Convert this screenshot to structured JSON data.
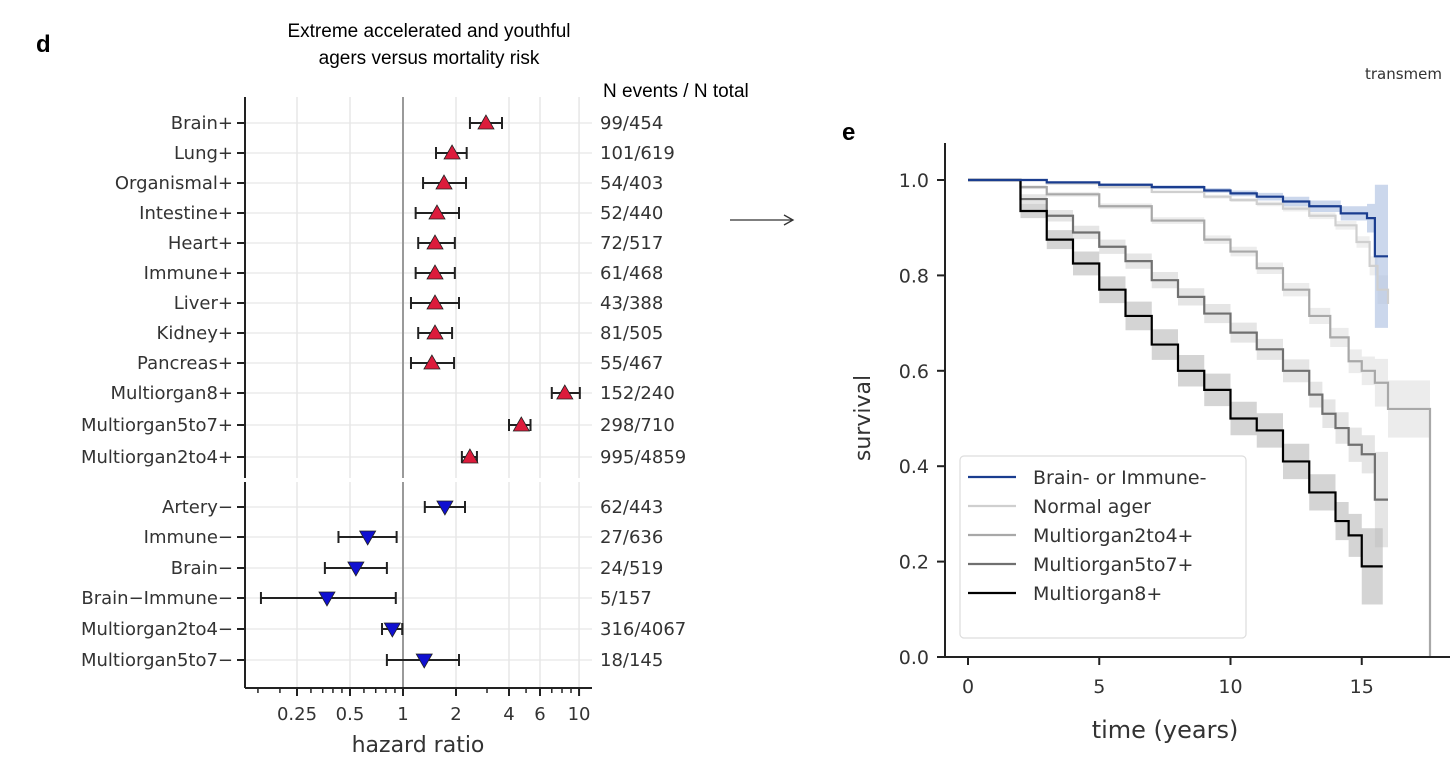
{
  "chart_data": [
    {
      "type": "forest",
      "panel_label": "d",
      "title": [
        "Extreme accelerated and youthful",
        "agers versus mortality risk"
      ],
      "right_header": "N events / N total",
      "xlabel": "hazard ratio",
      "xscale": "log2",
      "xlim": [
        0.127,
        11.9
      ],
      "xticks": [
        0.25,
        0.5,
        1,
        2,
        4,
        6,
        10
      ],
      "xtick_labels": [
        "0.25",
        "0.5",
        "1",
        "2",
        "4",
        "6",
        "10"
      ],
      "reference_line": 1,
      "grid": true,
      "groups": [
        {
          "name": "accelerated",
          "marker": "triangle-up",
          "color": "#dc1c3c",
          "rows": [
            {
              "label": "Brain+",
              "hr": 2.96,
              "lo": 2.4,
              "hi": 3.65,
              "n": "99/454"
            },
            {
              "label": "Lung+",
              "hr": 1.9,
              "lo": 1.54,
              "hi": 2.3,
              "n": "101/619"
            },
            {
              "label": "Organismal+",
              "hr": 1.71,
              "lo": 1.3,
              "hi": 2.28,
              "n": "54/403"
            },
            {
              "label": "Intestine+",
              "hr": 1.56,
              "lo": 1.18,
              "hi": 2.08,
              "n": "52/440"
            },
            {
              "label": "Heart+",
              "hr": 1.52,
              "lo": 1.22,
              "hi": 1.97,
              "n": "72/517"
            },
            {
              "label": "Immune+",
              "hr": 1.52,
              "lo": 1.18,
              "hi": 1.97,
              "n": "61/468"
            },
            {
              "label": "Liver+",
              "hr": 1.52,
              "lo": 1.11,
              "hi": 2.08,
              "n": "43/388"
            },
            {
              "label": "Kidney+",
              "hr": 1.52,
              "lo": 1.22,
              "hi": 1.9,
              "n": "81/505"
            },
            {
              "label": "Pancreas+",
              "hr": 1.46,
              "lo": 1.11,
              "hi": 1.95,
              "n": "55/467"
            },
            {
              "label": "Multiorgan8+",
              "hr": 8.3,
              "lo": 7.0,
              "hi": 10.1,
              "n": "152/240"
            },
            {
              "label": "Multiorgan5to7+",
              "hr": 4.7,
              "lo": 4.0,
              "hi": 5.3,
              "n": "298/710"
            },
            {
              "label": "Multiorgan2to4+",
              "hr": 2.4,
              "lo": 2.16,
              "hi": 2.63,
              "n": "995/4859"
            }
          ]
        },
        {
          "name": "youthful",
          "marker": "triangle-down",
          "color": "#1010d0",
          "rows": [
            {
              "label": "Artery−",
              "hr": 1.73,
              "lo": 1.33,
              "hi": 2.25,
              "n": "62/443"
            },
            {
              "label": "Immune−",
              "hr": 0.63,
              "lo": 0.43,
              "hi": 0.92,
              "n": "27/636"
            },
            {
              "label": "Brain−",
              "hr": 0.54,
              "lo": 0.36,
              "hi": 0.81,
              "n": "24/519"
            },
            {
              "label": "Brain−Immune−",
              "hr": 0.37,
              "lo": 0.156,
              "hi": 0.91,
              "n": "5/157"
            },
            {
              "label": "Multiorgan2to4−",
              "hr": 0.87,
              "lo": 0.76,
              "hi": 0.99,
              "n": "316/4067"
            },
            {
              "label": "Multiorgan5to7−",
              "hr": 1.32,
              "lo": 0.81,
              "hi": 2.08,
              "n": "18/145"
            }
          ]
        }
      ]
    },
    {
      "type": "line",
      "subtype": "kaplan-meier",
      "panel_label": "e",
      "corner_text": "transmem",
      "xlabel": "time (years)",
      "ylabel": "survival",
      "xlim": [
        -1,
        18.5
      ],
      "ylim": [
        0,
        1.05
      ],
      "xticks": [
        0,
        5,
        10,
        15
      ],
      "yticks": [
        0.0,
        0.2,
        0.4,
        0.6,
        0.8,
        1.0
      ],
      "ytick_labels": [
        "0.0",
        "0.2",
        "0.4",
        "0.6",
        "0.8",
        "1.0"
      ],
      "legend_position": "lower-left",
      "series": [
        {
          "name": "Normal ager",
          "color": "#cfcfcf",
          "band": "#e4e4e4",
          "x": [
            0,
            1,
            3,
            5,
            7,
            9,
            10,
            11,
            12,
            13,
            14,
            14.8,
            15.3,
            15.6,
            16
          ],
          "y": [
            1,
            1,
            0.993,
            0.985,
            0.975,
            0.965,
            0.958,
            0.95,
            0.94,
            0.925,
            0.905,
            0.87,
            0.82,
            0.77,
            0.74
          ],
          "ci": [
            0,
            0,
            0.003,
            0.003,
            0.003,
            0.004,
            0.004,
            0.005,
            0.006,
            0.007,
            0.009,
            0.012,
            0.02,
            0.03,
            0.04
          ]
        },
        {
          "name": "Multiorgan2to4+",
          "color": "#a8a8a8",
          "band": "#e0e0e0",
          "x": [
            0,
            1,
            2,
            3,
            5,
            7,
            9,
            10,
            11,
            12,
            13,
            13.8,
            14.5,
            15,
            15.5,
            16,
            17.6,
            17.6
          ],
          "y": [
            1,
            1,
            0.985,
            0.97,
            0.945,
            0.915,
            0.875,
            0.85,
            0.815,
            0.77,
            0.715,
            0.67,
            0.62,
            0.6,
            0.575,
            0.52,
            0.52,
            0
          ],
          "ci": [
            0,
            0,
            0.004,
            0.005,
            0.006,
            0.007,
            0.009,
            0.01,
            0.012,
            0.014,
            0.017,
            0.02,
            0.025,
            0.03,
            0.05,
            0.06,
            0.06,
            0
          ]
        },
        {
          "name": "Multiorgan5to7+",
          "color": "#707070",
          "band": "#d4d4d4",
          "x": [
            0,
            1,
            2,
            3,
            4,
            5,
            6,
            7,
            8,
            9,
            10,
            11,
            12,
            13,
            13.5,
            14,
            14.5,
            15,
            15.5,
            15.5,
            16
          ],
          "y": [
            1,
            1,
            0.96,
            0.925,
            0.89,
            0.86,
            0.83,
            0.79,
            0.755,
            0.72,
            0.68,
            0.645,
            0.6,
            0.55,
            0.51,
            0.48,
            0.445,
            0.425,
            0.425,
            0.33,
            0.33
          ],
          "ci": [
            0,
            0,
            0.01,
            0.012,
            0.014,
            0.015,
            0.016,
            0.017,
            0.018,
            0.02,
            0.021,
            0.022,
            0.024,
            0.027,
            0.03,
            0.033,
            0.036,
            0.04,
            0.06,
            0.1,
            0.12
          ]
        },
        {
          "name": "Multiorgan8+",
          "color": "#000000",
          "band": "#b8b8b8",
          "x": [
            0,
            1,
            2,
            3,
            4,
            5,
            6,
            7,
            8,
            9,
            10,
            11,
            12,
            13,
            14,
            14.5,
            15,
            15.8
          ],
          "y": [
            1,
            1,
            0.935,
            0.875,
            0.825,
            0.77,
            0.715,
            0.655,
            0.6,
            0.56,
            0.5,
            0.475,
            0.41,
            0.345,
            0.285,
            0.255,
            0.19,
            0.19
          ],
          "ci": [
            0,
            0,
            0.015,
            0.02,
            0.025,
            0.028,
            0.03,
            0.032,
            0.033,
            0.034,
            0.035,
            0.036,
            0.037,
            0.038,
            0.04,
            0.045,
            0.08,
            0.09
          ]
        },
        {
          "name": "Brain- or Immune-",
          "color": "#1a3d8f",
          "band": "#a9bde0",
          "x": [
            0,
            1.1,
            3,
            5,
            7,
            9,
            10,
            11,
            12,
            13,
            14.2,
            15.2,
            15.5,
            16
          ],
          "y": [
            1,
            1,
            0.995,
            0.99,
            0.985,
            0.978,
            0.972,
            0.965,
            0.955,
            0.945,
            0.93,
            0.92,
            0.84,
            0.84
          ],
          "ci": [
            0,
            0,
            0.002,
            0.003,
            0.004,
            0.005,
            0.006,
            0.008,
            0.01,
            0.012,
            0.015,
            0.03,
            0.15,
            0.15
          ]
        }
      ],
      "legend_order": [
        "Brain- or Immune-",
        "Normal ager",
        "Multiorgan2to4+",
        "Multiorgan5to7+",
        "Multiorgan8+"
      ]
    }
  ]
}
